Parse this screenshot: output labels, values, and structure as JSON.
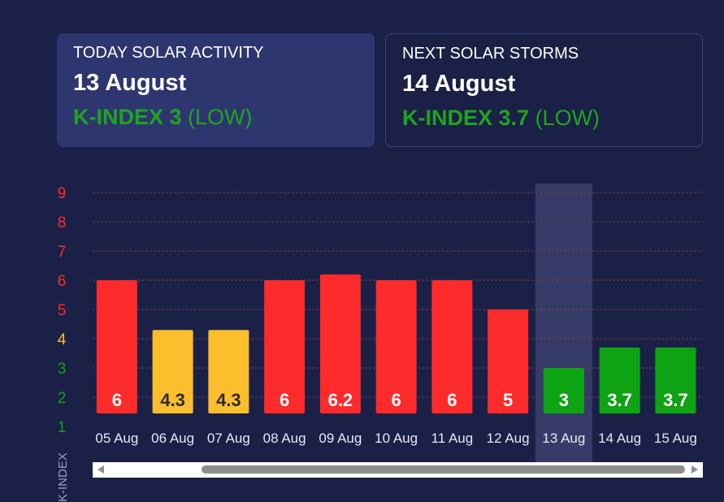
{
  "today": {
    "title": "TODAY SOLAR ACTIVITY",
    "date": "13 August",
    "k_label": "K-INDEX 3",
    "level": "(LOW)"
  },
  "next": {
    "title": "NEXT SOLAR STORMS",
    "date": "14 August",
    "k_label": "K-INDEX 3.7",
    "level": "(LOW)"
  },
  "colors": {
    "high": "#fd2b2b",
    "medium": "#fdbe2d",
    "low": "#0ea414",
    "highlight": "#363b67"
  },
  "chart_data": {
    "type": "bar",
    "ylabel": "K-INDEX",
    "categories": [
      "05 Aug",
      "06 Aug",
      "07 Aug",
      "08 Aug",
      "09 Aug",
      "10 Aug",
      "11 Aug",
      "12 Aug",
      "13 Aug",
      "14 Aug",
      "15 Aug"
    ],
    "values": [
      6,
      4.3,
      4.3,
      6,
      6.2,
      6,
      6,
      5,
      3,
      3.7,
      3.7
    ],
    "ylim": [
      1,
      9
    ],
    "yticks": [
      1,
      2,
      3,
      4,
      5,
      6,
      7,
      8,
      9
    ],
    "highlighted": "13 Aug",
    "grid": true
  }
}
